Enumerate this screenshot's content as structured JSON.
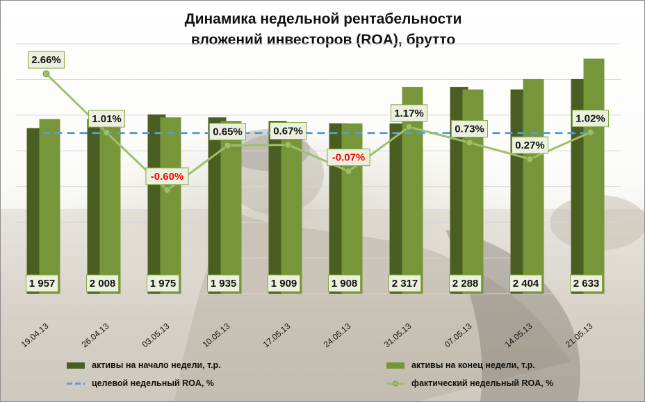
{
  "title_line1": "Динамика недельной рентабельности",
  "title_line2": "вложений  инвесторов (ROA), брутто",
  "colors": {
    "start_bar": "#4a5e22",
    "end_bar": "#77963a",
    "target_line": "#5b9bd5",
    "roa_line": "#9fc06a",
    "negative_label": "#ff0000",
    "label_box_fill": "#ebf1de",
    "label_box_border": "#8aa848"
  },
  "chart_data": {
    "type": "bar",
    "categories": [
      "19.04.13",
      "26.04.13",
      "03.05.13",
      "10.05.13",
      "17.05.13",
      "24.05.13",
      "31.05.13",
      "07.05.13",
      "14.05.13",
      "21.05.13"
    ],
    "series": [
      {
        "name": "активы на начало  недели, т.р.",
        "kind": "bar",
        "values": [
          1855,
          1957,
          2008,
          1975,
          1935,
          1909,
          1908,
          2317,
          2288,
          2404
        ],
        "value_labels": []
      },
      {
        "name": "активы на конец недели, т.р.",
        "kind": "bar",
        "values": [
          1957,
          2008,
          1975,
          1935,
          1909,
          1908,
          2317,
          2288,
          2404,
          2633
        ],
        "value_labels": [
          "1 957",
          "2 008",
          "1 975",
          "1 935",
          "1 909",
          "1 908",
          "2 317",
          "2 288",
          "2 404",
          "2 633"
        ]
      },
      {
        "name": "целевой недельный ROA, %",
        "kind": "line-dashed",
        "values": [
          1.0,
          1.0,
          1.0,
          1.0,
          1.0,
          1.0,
          1.0,
          1.0,
          1.0,
          1.0
        ]
      },
      {
        "name": "фактический недельный ROA, %",
        "kind": "line-markers",
        "values": [
          2.66,
          1.01,
          -0.6,
          0.65,
          0.67,
          -0.07,
          1.17,
          0.73,
          0.27,
          1.02
        ],
        "value_labels": [
          "2.66%",
          "1.01%",
          "-0.60%",
          "0.65%",
          "0.67%",
          "-0.07%",
          "1.17%",
          "0.73%",
          "0.27%",
          "1.02%"
        ]
      }
    ],
    "bar_axis": {
      "ylim": [
        0,
        2800
      ]
    },
    "roa_axis": {
      "ylim": [
        -3.5,
        3.5
      ]
    },
    "gridlines": "horizontal",
    "legend_position": "bottom"
  }
}
